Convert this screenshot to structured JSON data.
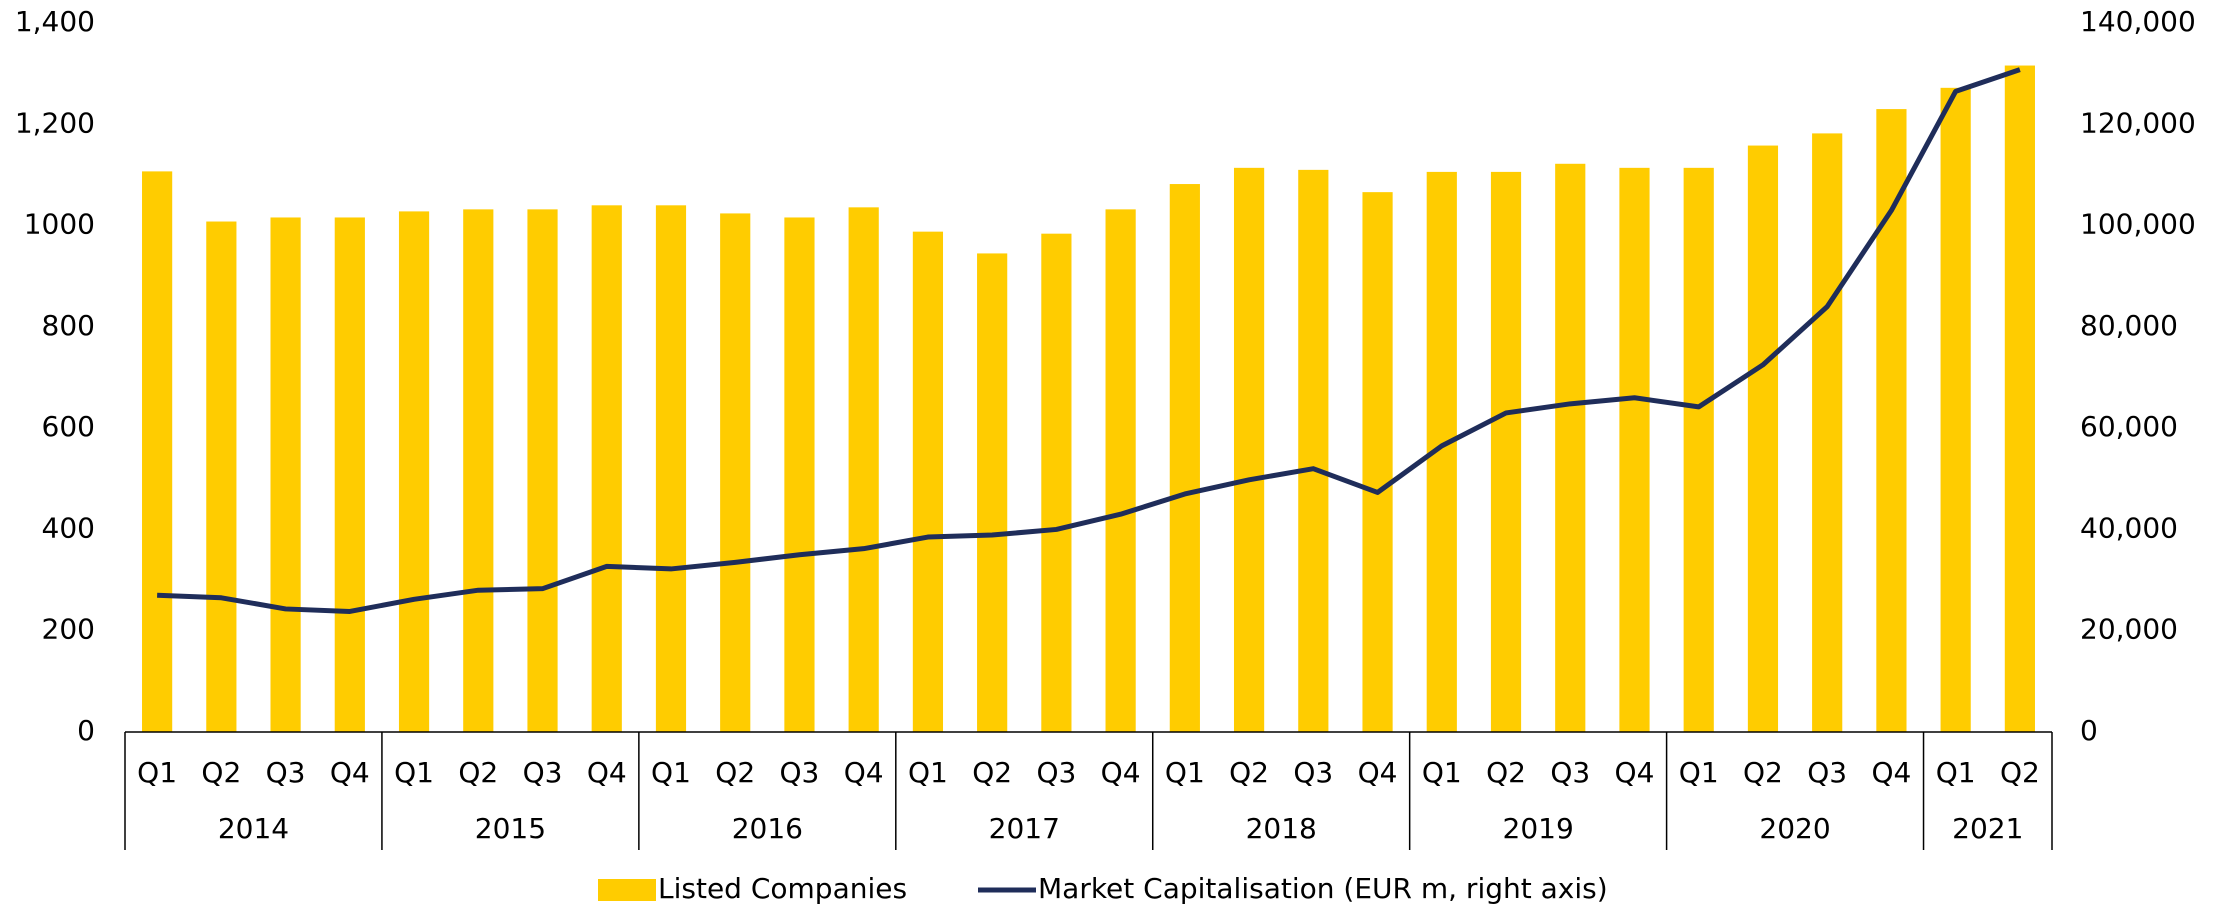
{
  "chart_data": {
    "type": "bar_line",
    "categories": [
      "Q1",
      "Q2",
      "Q3",
      "Q4",
      "Q1",
      "Q2",
      "Q3",
      "Q4",
      "Q1",
      "Q2",
      "Q3",
      "Q4",
      "Q1",
      "Q2",
      "Q3",
      "Q4",
      "Q1",
      "Q2",
      "Q3",
      "Q4",
      "Q1",
      "Q2",
      "Q3",
      "Q4",
      "Q1",
      "Q2",
      "Q3",
      "Q4",
      "Q1",
      "Q2"
    ],
    "groups": [
      "2014",
      "2015",
      "2016",
      "2017",
      "2018",
      "2019",
      "2020",
      "2021"
    ],
    "series": [
      {
        "name": "Listed Companies",
        "color": "#ffcc00",
        "type": "bar",
        "values": [
          1107,
          1008,
          1016,
          1016,
          1028,
          1032,
          1032,
          1040,
          1040,
          1024,
          1016,
          1036,
          988,
          945,
          984,
          1032,
          1082,
          1114,
          1110,
          1066,
          1106,
          1106,
          1122,
          1114,
          1114,
          1158,
          1182,
          1230,
          1272,
          1316
        ]
      },
      {
        "name": "Market Capitalisation (EUR m, right axis)",
        "color": "#1f2d5a",
        "type": "line",
        "axis": "y2",
        "values": [
          27000,
          26500,
          24300,
          23800,
          26200,
          28000,
          28300,
          32700,
          32200,
          33500,
          35000,
          36200,
          38500,
          38900,
          40000,
          43000,
          47000,
          49800,
          52000,
          47300,
          56500,
          63000,
          64800,
          66000,
          64200,
          72500,
          84000,
          103000,
          126500,
          130800
        ]
      }
    ],
    "ylim": [
      0,
      1400
    ],
    "yticks": [
      0,
      200,
      400,
      600,
      800,
      1000,
      {
        "value": 1200,
        "label": "1,200"
      },
      {
        "value": 1400,
        "label": "1,400"
      }
    ],
    "y2lim": [
      0,
      140000
    ],
    "y2ticks": [
      0,
      {
        "value": 20000,
        "label": "20,000"
      },
      {
        "value": 40000,
        "label": "40,000"
      },
      {
        "value": 60000,
        "label": "60,000"
      },
      {
        "value": 80000,
        "label": "80,000"
      },
      {
        "value": 100000,
        "label": "100,000"
      },
      {
        "value": 120000,
        "label": "120,000"
      },
      {
        "value": 140000,
        "label": "140,000"
      }
    ],
    "legend": "bottom"
  }
}
